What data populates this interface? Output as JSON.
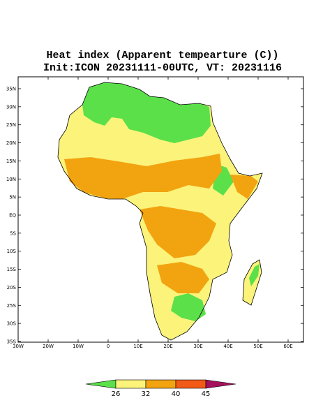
{
  "title": [
    "Heat index (Apparent tempearture (C))",
    "Init:ICON 20231111-00UTC, VT: 20231116"
  ],
  "map": {
    "lat_ticks": [
      "35N",
      "30N",
      "25N",
      "20N",
      "15N",
      "10N",
      "5N",
      "EQ",
      "5S",
      "10S",
      "15S",
      "20S",
      "25S",
      "30S",
      "35S"
    ],
    "lon_ticks": [
      "30W",
      "20W",
      "10W",
      "0",
      "10E",
      "20E",
      "30E",
      "40E",
      "50E",
      "60E"
    ]
  },
  "colorbar": {
    "ticks": [
      26,
      32,
      40,
      45
    ],
    "colors": [
      "#5be04a",
      "#fbf37a",
      "#f2a310",
      "#f25a18",
      "#a3125c"
    ]
  }
}
